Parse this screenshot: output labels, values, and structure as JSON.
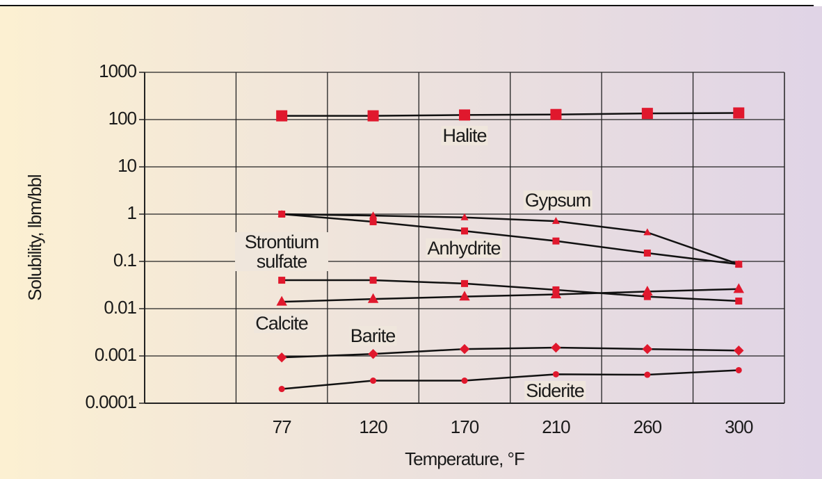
{
  "chart_data": {
    "type": "line",
    "x_label": "Temperature, °F",
    "y_label": "Solubility, lbm/bbl",
    "categories": [
      null,
      "77",
      "120",
      "170",
      "210",
      "260",
      "300"
    ],
    "series": [
      {
        "name": "Halite",
        "color": "#e0182d",
        "marker": "square",
        "values": [
          null,
          120,
          120,
          125,
          128,
          135,
          138
        ]
      },
      {
        "name": "Gypsum",
        "color": "#e0182d",
        "marker": "triangle",
        "values": [
          null,
          1.0,
          0.93,
          0.85,
          0.71,
          0.41,
          0.087
        ]
      },
      {
        "name": "Strontium sulfate",
        "color": "#e0182d",
        "marker": "square",
        "values": [
          null,
          0.04,
          0.04,
          0.034,
          0.025,
          0.018,
          0.0145
        ]
      },
      {
        "name": "Anhydrite",
        "color": "#e0182d",
        "marker": "square",
        "values": [
          null,
          1.0,
          0.69,
          0.44,
          0.27,
          0.15,
          0.087
        ]
      },
      {
        "name": "Calcite",
        "color": "#e0182d",
        "marker": "triangle",
        "values": [
          null,
          0.014,
          0.016,
          0.018,
          0.02,
          0.023,
          0.026
        ]
      },
      {
        "name": "Barite",
        "color": "#e0182d",
        "marker": "diamond",
        "values": [
          null,
          0.00093,
          0.0011,
          0.0014,
          0.0015,
          0.0014,
          0.0013
        ]
      },
      {
        "name": "Siderite",
        "color": "#e0182d",
        "marker": "circle",
        "values": [
          null,
          0.0002,
          0.0003,
          0.0003,
          0.00041,
          0.0004,
          0.0005
        ]
      }
    ],
    "log_y": true,
    "ylim": [
      0.0001,
      1000
    ],
    "yticks": [
      0.0001,
      0.001,
      0.01,
      0.1,
      1,
      10,
      100,
      1000
    ],
    "grid": true,
    "line_color": "#111111"
  }
}
